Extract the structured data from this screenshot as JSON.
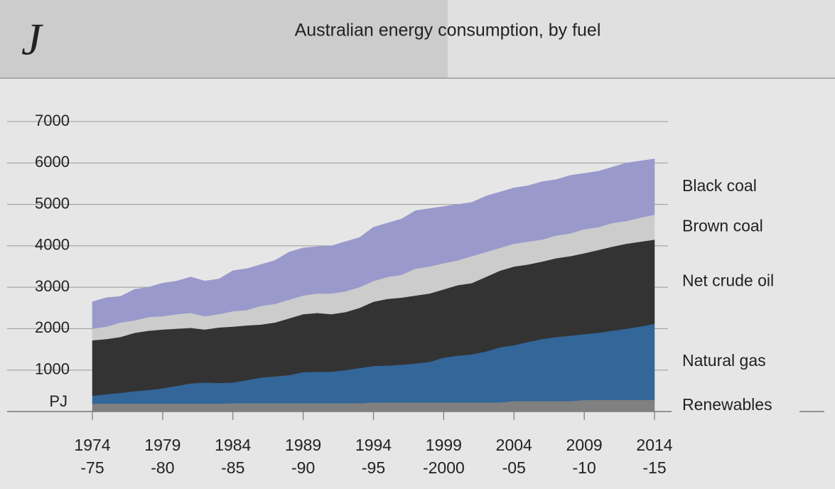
{
  "chart_data": {
    "type": "stacked-area",
    "logo": "J",
    "title": "Australian energy consumption, by fuel",
    "categories": [
      [
        "1974",
        "-75"
      ],
      null,
      null,
      null,
      null,
      [
        "1979",
        "-80"
      ],
      null,
      null,
      null,
      null,
      [
        "1984",
        "-85"
      ],
      null,
      null,
      null,
      null,
      [
        "1989",
        "-90"
      ],
      null,
      null,
      null,
      null,
      [
        "1994",
        "-95"
      ],
      null,
      null,
      null,
      null,
      [
        "1999",
        "-2000"
      ],
      null,
      null,
      null,
      null,
      [
        "2004",
        "-05"
      ],
      null,
      null,
      null,
      null,
      [
        "2009",
        "-10"
      ],
      null,
      null,
      null,
      null,
      [
        "2014",
        "-15"
      ]
    ],
    "series": [
      {
        "name": "Renewables",
        "color": "#808080",
        "values": [
          190,
          190,
          190,
          190,
          190,
          190,
          190,
          190,
          190,
          190,
          200,
          200,
          200,
          200,
          200,
          200,
          200,
          200,
          200,
          200,
          220,
          220,
          220,
          220,
          220,
          220,
          220,
          220,
          220,
          220,
          250,
          250,
          250,
          250,
          250,
          280,
          280,
          280,
          280,
          280,
          280
        ]
      },
      {
        "name": "Natural gas",
        "color": "#336699",
        "values": [
          190,
          230,
          260,
          300,
          330,
          370,
          430,
          490,
          510,
          500,
          500,
          560,
          620,
          650,
          680,
          750,
          760,
          760,
          800,
          850,
          880,
          890,
          910,
          940,
          980,
          1080,
          1130,
          1160,
          1230,
          1330,
          1350,
          1430,
          1500,
          1550,
          1580,
          1590,
          1620,
          1670,
          1720,
          1770,
          1840
        ]
      },
      {
        "name": "Net crude oil",
        "color": "#333333",
        "values": [
          1340,
          1330,
          1350,
          1410,
          1430,
          1420,
          1380,
          1340,
          1280,
          1340,
          1350,
          1320,
          1280,
          1300,
          1370,
          1400,
          1420,
          1390,
          1400,
          1450,
          1550,
          1610,
          1620,
          1640,
          1650,
          1650,
          1700,
          1720,
          1800,
          1850,
          1900,
          1870,
          1870,
          1900,
          1920,
          1950,
          2000,
          2030,
          2050,
          2050,
          2030
        ]
      },
      {
        "name": "Brown coal",
        "color": "#cccccc",
        "values": [
          280,
          300,
          350,
          300,
          330,
          320,
          350,
          360,
          320,
          320,
          370,
          370,
          450,
          450,
          450,
          450,
          470,
          500,
          500,
          500,
          500,
          530,
          550,
          650,
          650,
          630,
          600,
          650,
          600,
          550,
          550,
          550,
          530,
          550,
          550,
          580,
          550,
          570,
          550,
          580,
          600
        ]
      },
      {
        "name": "Black coal",
        "color": "#9999cc",
        "values": [
          650,
          700,
          630,
          750,
          720,
          800,
          800,
          870,
          850,
          850,
          980,
          1000,
          1000,
          1050,
          1150,
          1150,
          1130,
          1150,
          1200,
          1200,
          1300,
          1300,
          1350,
          1400,
          1400,
          1370,
          1350,
          1300,
          1350,
          1350,
          1350,
          1350,
          1400,
          1350,
          1400,
          1350,
          1350,
          1350,
          1400,
          1370,
          1350
        ]
      }
    ],
    "ylim": [
      0,
      7000
    ],
    "yticks": [
      {
        "value": 0,
        "label": "PJ"
      },
      1000,
      2000,
      3000,
      4000,
      5000,
      6000,
      7000
    ],
    "grid": true
  }
}
